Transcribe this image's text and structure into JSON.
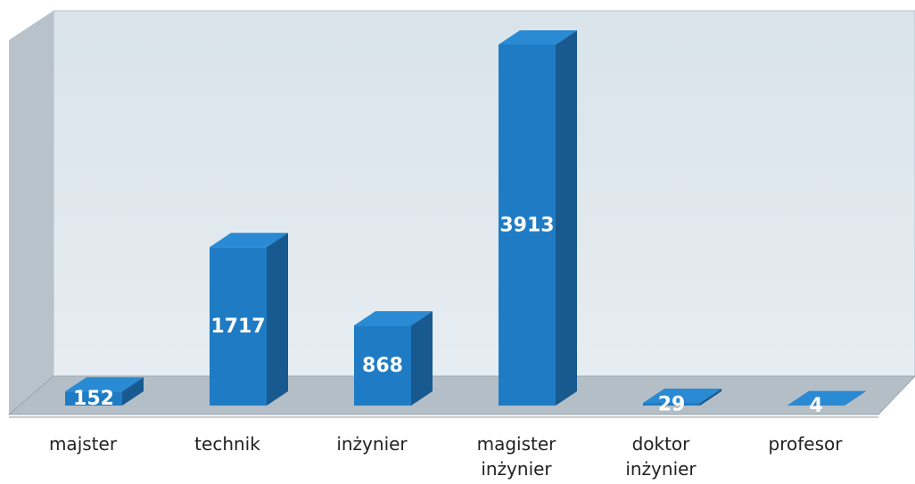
{
  "chart_data": {
    "type": "bar3d",
    "categories": [
      "majster",
      "technik",
      "inżynier",
      "magister inżynier",
      "doktor inżynier",
      "profesor"
    ],
    "values": [
      152,
      1717,
      868,
      3913,
      29,
      4
    ],
    "color": "#1f7cc4"
  }
}
